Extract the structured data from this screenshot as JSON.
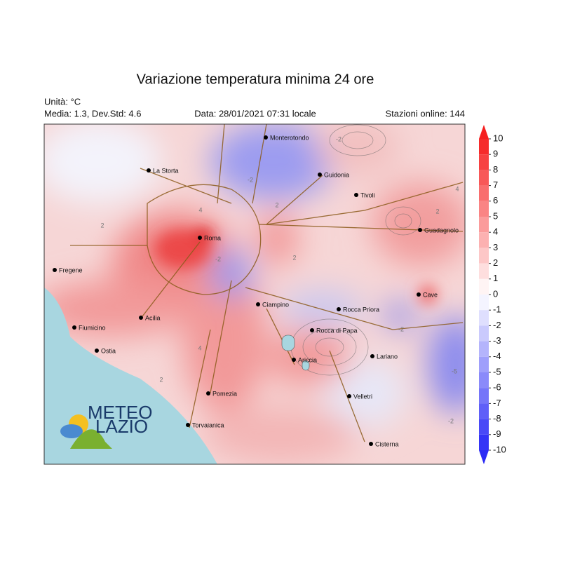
{
  "title": "Variazione temperatura minima 24 ore",
  "info": {
    "unit": "Unità: °C",
    "stats": "Media: 1.3, Dev.Std: 4.6",
    "date": "Data: 28/01/2021 07:31 locale",
    "stations": "Stazioni online: 144"
  },
  "cities": [
    "Monterotondo",
    "La Storta",
    "Guidonia",
    "Tivoli",
    "Guadagnolo",
    "Roma",
    "Fregene",
    "Cave",
    "Ciampino",
    "Rocca Priora",
    "Acilia",
    "Fiumicino",
    "Rocca di Papa",
    "Ostia",
    "Lariano",
    "Ariccia",
    "Pomezia",
    "Velletri",
    "Torvaianica",
    "Cisterna"
  ],
  "contour_labels": [
    "2",
    "-2",
    "-2",
    "4",
    "2",
    "-2",
    "4",
    "2",
    "-5",
    "-2",
    "2",
    "4",
    "2",
    "-2"
  ],
  "logo": {
    "line1": "METEO",
    "line2": "LAZIO"
  },
  "colorbar": {
    "lim": [
      -10,
      10
    ],
    "ticks": [
      10,
      9,
      8,
      7,
      6,
      5,
      4,
      3,
      2,
      1,
      0,
      -1,
      -2,
      -3,
      -4,
      -5,
      -6,
      -7,
      -8,
      -9,
      -10
    ],
    "high_color": "#f52020",
    "low_color": "#2a2af5"
  }
}
